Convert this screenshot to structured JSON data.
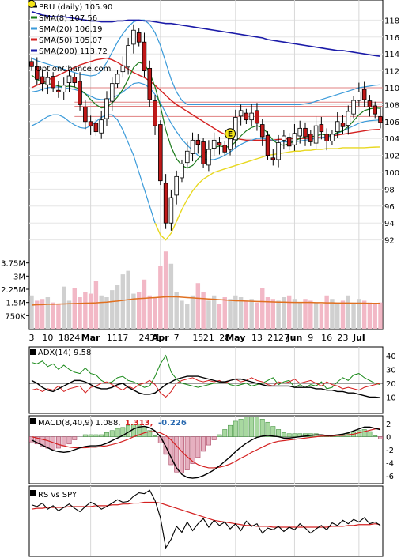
{
  "chart_data": {
    "type": "line",
    "ticker": "PRU",
    "watermark": "OptionChance.com",
    "price_panel": {
      "legend": [
        {
          "label": "PRU (daily) 105.90",
          "color": "#000000"
        },
        {
          "label": "SMA(8) 107.56",
          "color": "#1a7a1a"
        },
        {
          "label": "SMA(20) 106.19",
          "color": "#3a9ad9"
        },
        {
          "label": "SMA(50) 105.07",
          "color": "#d42020"
        },
        {
          "label": "SMA(200) 113.72",
          "color": "#1a1aa8"
        }
      ],
      "y_ticks": [
        "118",
        "116",
        "114",
        "112",
        "110",
        "108",
        "106",
        "104",
        "102",
        "100",
        "98",
        "96",
        "94",
        "92"
      ],
      "ylim": [
        90,
        120
      ],
      "close": [
        112.5,
        111,
        110.5,
        111.2,
        110,
        109.5,
        110.3,
        111.4,
        110.6,
        108,
        106,
        105.5,
        104.8,
        106.2,
        108.7,
        110.5,
        111.6,
        112.6,
        115,
        116.8,
        115.4,
        112,
        108.6,
        105.5,
        99,
        94,
        97,
        99.5,
        101,
        102.5,
        103.8,
        103.3,
        101,
        102.7,
        103.8,
        103.2,
        102.4,
        104,
        106.5,
        107.3,
        106.2,
        107,
        105.8,
        104.2,
        102,
        101.5,
        103.5,
        104.3,
        103.1,
        104.6,
        105.2,
        104.2,
        103.6,
        105.5,
        104.8,
        103.7,
        104.5,
        106,
        105.4,
        107.2,
        108.5,
        109.5,
        108.6,
        107.7,
        106.9,
        105.9
      ],
      "sma200": [
        119,
        118.8,
        118.6,
        118.5,
        118.4,
        118.4,
        118.4,
        118.3,
        118.2,
        118.1,
        118,
        117.9,
        117.9,
        117.8,
        117.8,
        117.8,
        117.9,
        117.9,
        118,
        118,
        118,
        117.9,
        117.9,
        117.8,
        117.7,
        117.6,
        117.6,
        117.5,
        117.4,
        117.3,
        117.2,
        117.1,
        117,
        116.9,
        116.8,
        116.7,
        116.6,
        116.5,
        116.4,
        116.3,
        116.2,
        116.1,
        116,
        115.9,
        115.7,
        115.6,
        115.5,
        115.4,
        115.3,
        115.2,
        115.1,
        115,
        114.9,
        114.8,
        114.7,
        114.6,
        114.5,
        114.4,
        114.4,
        114.3,
        114.2,
        114.1,
        114,
        113.9,
        113.8,
        113.72
      ],
      "sma50": [
        110,
        110.3,
        110.6,
        110.9,
        111.2,
        111.5,
        111.8,
        112.1,
        112.4,
        112.7,
        112.9,
        113.1,
        113.3,
        113.4,
        113.5,
        113.3,
        113,
        112.6,
        112.2,
        111.8,
        111.5,
        111.2,
        110.8,
        110.3,
        109.7,
        109.1,
        108.5,
        108,
        107.6,
        107.2,
        106.8,
        106.4,
        106,
        105.6,
        105.2,
        104.8,
        104.5,
        104.2,
        104,
        103.9,
        103.8,
        103.8,
        103.8,
        103.8,
        103.8,
        103.8,
        103.9,
        103.9,
        104,
        104,
        104,
        104,
        104,
        104.1,
        104.1,
        104.2,
        104.3,
        104.4,
        104.5,
        104.6,
        104.7,
        104.8,
        104.9,
        105,
        105.05,
        105.07
      ],
      "sma8": [
        111.5,
        111,
        110.6,
        110.5,
        110.4,
        110.2,
        110.1,
        110.2,
        110.1,
        109.8,
        109.3,
        108.6,
        108,
        107.6,
        107.7,
        108.2,
        108.9,
        109.8,
        111,
        112.4,
        113,
        112.8,
        111.8,
        110.1,
        107.8,
        105,
        103,
        101.6,
        100.8,
        100.5,
        100.8,
        101.6,
        102.2,
        102.6,
        102.9,
        103.1,
        103,
        103,
        103.6,
        104.3,
        104.9,
        105.3,
        105.5,
        105.3,
        104.6,
        103.8,
        103.3,
        103.2,
        103.4,
        103.7,
        104,
        104.2,
        104.2,
        104.3,
        104.5,
        104.4,
        104.4,
        104.7,
        104.9,
        105.4,
        106.1,
        106.8,
        107.3,
        107.5,
        107.6,
        107.56
      ],
      "sma20": [
        109.5,
        109.6,
        109.8,
        110,
        110.1,
        110.1,
        110,
        109.9,
        109.8,
        109.6,
        109.3,
        109,
        108.7,
        108.6,
        108.6,
        108.8,
        109.1,
        109.5,
        110,
        110.5,
        110.6,
        110.4,
        110,
        109.2,
        108.2,
        107,
        105.8,
        104.8,
        103.9,
        103.2,
        102.6,
        102,
        101.6,
        101.5,
        101.5,
        101.7,
        102,
        102.4,
        102.9,
        103.3,
        103.6,
        103.8,
        104,
        104,
        103.9,
        103.8,
        103.7,
        103.6,
        103.6,
        103.6,
        103.7,
        103.8,
        103.9,
        104,
        104.1,
        104.2,
        104.3,
        104.6,
        104.9,
        105.2,
        105.5,
        105.8,
        106,
        106.1,
        106.15,
        106.19
      ],
      "bb_upper": [
        113.5,
        113.2,
        113,
        112.8,
        112.6,
        112.4,
        112.2,
        112,
        111.8,
        111.6,
        111.5,
        111.4,
        111.5,
        112,
        113,
        114.2,
        115.4,
        116.4,
        117.2,
        117.8,
        118,
        118,
        117.5,
        116.5,
        115,
        113,
        111,
        109.5,
        108.5,
        108,
        108,
        108,
        108,
        108,
        108,
        108,
        108,
        108,
        108,
        108,
        108,
        108,
        108,
        108,
        108,
        108,
        108,
        108,
        108,
        108,
        108,
        108.1,
        108.2,
        108.4,
        108.6,
        108.8,
        109,
        109.2,
        109.4,
        109.6,
        109.8,
        110,
        110.1,
        110.2,
        110.3,
        110.35
      ],
      "bb_lower": [
        105.5,
        105.8,
        106.2,
        106.6,
        106.8,
        106.8,
        106.5,
        106,
        105.6,
        105.3,
        105.2,
        105.5,
        106,
        106.5,
        106.8,
        106.8,
        106.2,
        105,
        103.5,
        102,
        100,
        98,
        96,
        94,
        92.6,
        92,
        92.8,
        94.2,
        95.6,
        96.8,
        97.8,
        98.6,
        99.2,
        99.6,
        100,
        100.2,
        100.4,
        100.6,
        100.8,
        101,
        101.2,
        101.4,
        101.6,
        101.8,
        102,
        102.1,
        102.2,
        102.3,
        102.4,
        102.5,
        102.5,
        102.6,
        102.6,
        102.7,
        102.7,
        102.8,
        102.8,
        102.8,
        102.9,
        102.9,
        102.9,
        102.9,
        102.9,
        102.95,
        102.98,
        103
      ],
      "hlines": [
        110,
        108.3,
        107.8,
        106.6
      ]
    },
    "volume_panel": {
      "y_ticks": [
        "3.75M",
        "3M",
        "2.25M",
        "1.5M",
        "750K"
      ],
      "ylim": [
        0,
        4500000
      ],
      "volume": [
        1.9,
        1.6,
        1.7,
        1.8,
        1.5,
        1.4,
        2.4,
        1.6,
        2.3,
        1.8,
        2.1,
        2.0,
        2.7,
        1.9,
        1.8,
        2.2,
        2.5,
        3.1,
        3.3,
        2.0,
        2.1,
        2.8,
        1.9,
        1.8,
        3.6,
        4.4,
        3.7,
        2.1,
        1.6,
        1.4,
        1.9,
        2.6,
        2.1,
        1.6,
        1.9,
        1.4,
        1.8,
        1.7,
        1.9,
        1.8,
        1.6,
        1.7,
        1.5,
        2.3,
        1.8,
        1.7,
        1.6,
        1.8,
        1.9,
        1.7,
        1.5,
        1.7,
        1.6,
        1.5,
        1.4,
        1.9,
        1.7,
        1.5,
        1.6,
        1.9,
        1.5,
        1.7,
        1.6,
        1.5,
        1.4,
        1.5
      ],
      "volume_sma": [
        1.35,
        1.37,
        1.38,
        1.4,
        1.4,
        1.41,
        1.42,
        1.43,
        1.44,
        1.45,
        1.46,
        1.47,
        1.48,
        1.5,
        1.52,
        1.55,
        1.58,
        1.62,
        1.66,
        1.7,
        1.72,
        1.74,
        1.76,
        1.78,
        1.8,
        1.82,
        1.83,
        1.82,
        1.8,
        1.78,
        1.76,
        1.74,
        1.72,
        1.7,
        1.68,
        1.66,
        1.64,
        1.62,
        1.6,
        1.59,
        1.58,
        1.57,
        1.56,
        1.55,
        1.54,
        1.53,
        1.52,
        1.52,
        1.51,
        1.5,
        1.5,
        1.5,
        1.5,
        1.49,
        1.49,
        1.48,
        1.48,
        1.47,
        1.47,
        1.47,
        1.46,
        1.46,
        1.46,
        1.45,
        1.45,
        1.45
      ]
    },
    "x_labels": [
      {
        "label": "3",
        "i": 0
      },
      {
        "label": "10",
        "i": 3
      },
      {
        "label": "18",
        "i": 6
      },
      {
        "label": "24",
        "i": 8
      },
      {
        "label": "Mar",
        "i": 11
      },
      {
        "label": "11",
        "i": 15
      },
      {
        "label": "17",
        "i": 17
      },
      {
        "label": "24",
        "i": 21
      },
      {
        "label": "31",
        "i": 23
      },
      {
        "label": "Apr",
        "i": 24
      },
      {
        "label": "7",
        "i": 27
      },
      {
        "label": "15",
        "i": 31
      },
      {
        "label": "21",
        "i": 33
      },
      {
        "label": "28",
        "i": 36
      },
      {
        "label": "May",
        "i": 38
      },
      {
        "label": "13",
        "i": 42
      },
      {
        "label": "21",
        "i": 45
      },
      {
        "label": "27",
        "i": 47
      },
      {
        "label": "Jun",
        "i": 49
      },
      {
        "label": "9",
        "i": 52
      },
      {
        "label": "16",
        "i": 55
      },
      {
        "label": "23",
        "i": 58
      },
      {
        "label": "Jul",
        "i": 61
      }
    ],
    "bold_x_labels": [
      "Mar",
      "Apr",
      "May",
      "Jun",
      "Jul"
    ],
    "earnings_marker": {
      "label": "E",
      "i": 37
    },
    "adx_panel": {
      "legend": "ADX(14) 9.58",
      "y_ticks": [
        "40",
        "30",
        "20",
        "10"
      ],
      "ylim": [
        0,
        45
      ],
      "adx": [
        22,
        20,
        17,
        15,
        14,
        16,
        18,
        20,
        22,
        22,
        21,
        19,
        17,
        16,
        16,
        17,
        19,
        20,
        17,
        15,
        13,
        12,
        12,
        13,
        16,
        19,
        21,
        23,
        24,
        25,
        25,
        25,
        24,
        23,
        22,
        21,
        21,
        22,
        23,
        23,
        22,
        21,
        20,
        19,
        18,
        18,
        18,
        18,
        18,
        17,
        17,
        17,
        17,
        16,
        16,
        15,
        15,
        14,
        14,
        13,
        13,
        12,
        11,
        10,
        10,
        9.58
      ],
      "plus_di": [
        35,
        34,
        36,
        32,
        34,
        30,
        33,
        30,
        28,
        27,
        31,
        27,
        26,
        22,
        20,
        21,
        24,
        25,
        22,
        21,
        19,
        17,
        18,
        25,
        34,
        40,
        28,
        23,
        20,
        19,
        18,
        17,
        18,
        19,
        20,
        20,
        21,
        19,
        18,
        19,
        20,
        18,
        19,
        20,
        22,
        24,
        19,
        21,
        22,
        17,
        19,
        17,
        19,
        18,
        21,
        16,
        17,
        21,
        24,
        22,
        26,
        27,
        24,
        22,
        20,
        19
      ],
      "minus_di": [
        15,
        16,
        14,
        16,
        15,
        18,
        14,
        16,
        17,
        18,
        13,
        17,
        18,
        20,
        21,
        19,
        17,
        15,
        18,
        16,
        19,
        20,
        22,
        19,
        13,
        10,
        14,
        20,
        22,
        23,
        24,
        22,
        21,
        22,
        21,
        22,
        20,
        22,
        23,
        21,
        22,
        24,
        22,
        21,
        19,
        18,
        21,
        20,
        21,
        23,
        20,
        21,
        22,
        20,
        18,
        21,
        19,
        18,
        16,
        17,
        16,
        15,
        17,
        18,
        19,
        20
      ]
    },
    "macd_panel": {
      "legend_label": "MACD(8,40,9) 1.088,",
      "legend_signal": "1.313,",
      "legend_hist": "-0.226",
      "y_ticks": [
        "2",
        "0",
        "-2",
        "-4",
        "-6"
      ],
      "ylim": [
        -7,
        3
      ],
      "macd": [
        -0.5,
        -0.9,
        -1.3,
        -1.7,
        -2.1,
        -2.3,
        -2.4,
        -2.3,
        -2.0,
        -1.7,
        -1.5,
        -1.4,
        -1.4,
        -1.3,
        -1.0,
        -0.6,
        -0.2,
        0.2,
        0.7,
        1.2,
        1.5,
        1.6,
        1.4,
        0.9,
        0,
        -1.5,
        -3.2,
        -4.8,
        -5.8,
        -6.3,
        -6.4,
        -6.3,
        -6.0,
        -5.6,
        -5.1,
        -4.5,
        -3.8,
        -3.1,
        -2.3,
        -1.6,
        -1.0,
        -0.5,
        -0.1,
        0.1,
        0.2,
        0.1,
        0,
        -0.2,
        -0.2,
        -0.1,
        0,
        0.1,
        0.2,
        0.3,
        0.3,
        0.2,
        0.2,
        0.3,
        0.4,
        0.6,
        0.9,
        1.2,
        1.5,
        1.5,
        1.3,
        1.088
      ],
      "signal": [
        0,
        -0.2,
        -0.4,
        -0.6,
        -0.9,
        -1.2,
        -1.4,
        -1.6,
        -1.7,
        -1.7,
        -1.7,
        -1.6,
        -1.6,
        -1.5,
        -1.4,
        -1.2,
        -1.0,
        -0.7,
        -0.4,
        0,
        0.3,
        0.6,
        0.8,
        0.8,
        0.6,
        0.2,
        -0.5,
        -1.4,
        -2.3,
        -3.1,
        -3.8,
        -4.3,
        -4.6,
        -4.8,
        -4.8,
        -4.7,
        -4.5,
        -4.2,
        -3.8,
        -3.3,
        -2.9,
        -2.4,
        -2.0,
        -1.6,
        -1.2,
        -0.9,
        -0.7,
        -0.6,
        -0.5,
        -0.4,
        -0.3,
        -0.2,
        -0.1,
        0,
        0.1,
        0.1,
        0.1,
        0.2,
        0.2,
        0.3,
        0.4,
        0.6,
        0.8,
        1.0,
        1.2,
        1.313
      ]
    },
    "rs_panel": {
      "legend": "RS vs SPY",
      "rs": [
        60,
        58,
        62,
        55,
        59,
        53,
        57,
        61,
        56,
        52,
        58,
        63,
        60,
        55,
        58,
        62,
        66,
        63,
        64,
        70,
        74,
        73,
        77,
        65,
        45,
        10,
        20,
        35,
        28,
        40,
        30,
        38,
        44,
        34,
        42,
        36,
        40,
        32,
        38,
        30,
        41,
        35,
        38,
        27,
        33,
        31,
        35,
        29,
        34,
        31,
        38,
        33,
        27,
        32,
        36,
        31,
        39,
        36,
        42,
        38,
        43,
        40,
        45,
        38,
        40,
        36
      ],
      "rs_sma": [
        55,
        56,
        56,
        57,
        57,
        57,
        57,
        58,
        58,
        58,
        58,
        58,
        59,
        59,
        59,
        60,
        60,
        61,
        61,
        62,
        62,
        63,
        63,
        63,
        62,
        60,
        58,
        56,
        54,
        52,
        50,
        48,
        46,
        44,
        42,
        41,
        40,
        39,
        38,
        37,
        36,
        36,
        35,
        35,
        35,
        34,
        34,
        34,
        34,
        34,
        34,
        34,
        34,
        34,
        34,
        34,
        35,
        35,
        35,
        36,
        36,
        37,
        37,
        37,
        38,
        37
      ]
    }
  }
}
